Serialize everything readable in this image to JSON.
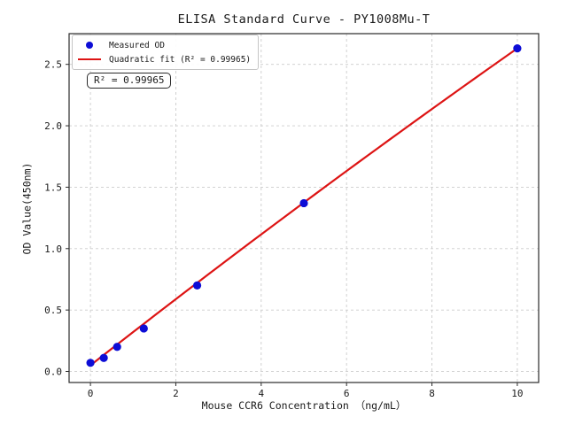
{
  "chart_data": {
    "type": "scatter",
    "title": "ELISA Standard Curve - PY1008Mu-T",
    "xlabel": "Mouse CCR6 Concentration （ng/mL）",
    "ylabel": "OD Value(450nm)",
    "xlim": [
      -0.5,
      10.5
    ],
    "ylim": [
      -0.09,
      2.75
    ],
    "xticks": [
      0,
      2,
      4,
      6,
      8,
      10
    ],
    "xtick_labels": [
      "0",
      "2",
      "4",
      "6",
      "8",
      "10"
    ],
    "yticks": [
      0.0,
      0.5,
      1.0,
      1.5,
      2.0,
      2.5
    ],
    "ytick_labels": [
      "0.0",
      "0.5",
      "1.0",
      "1.5",
      "2.0",
      "2.5"
    ],
    "grid": true,
    "legend_position": "upper-left",
    "annotation": "R² = 0.99965",
    "colors": {
      "points": "#0d0dd6",
      "fit_line": "#dd1414",
      "grid": "#cccccc",
      "frame": "#2a2a2a",
      "text": "#1a1a1a"
    },
    "legend": {
      "entries": [
        {
          "label": "Measured OD",
          "marker": "dot",
          "color": "#0d0dd6"
        },
        {
          "label": "Quadratic fit (R² = 0.99965)",
          "marker": "line",
          "color": "#dd1414"
        }
      ]
    },
    "series": [
      {
        "name": "Measured OD",
        "type": "scatter",
        "x": [
          0,
          0.3125,
          0.625,
          1.25,
          2.5,
          5,
          10
        ],
        "y": [
          0.07,
          0.11,
          0.2,
          0.35,
          0.7,
          1.37,
          2.63
        ]
      },
      {
        "name": "Quadratic fit",
        "type": "line",
        "coeffs": {
          "a": 0.05,
          "b": 0.272,
          "c": -0.0014
        },
        "x_start": 0,
        "x_end": 10
      }
    ]
  }
}
